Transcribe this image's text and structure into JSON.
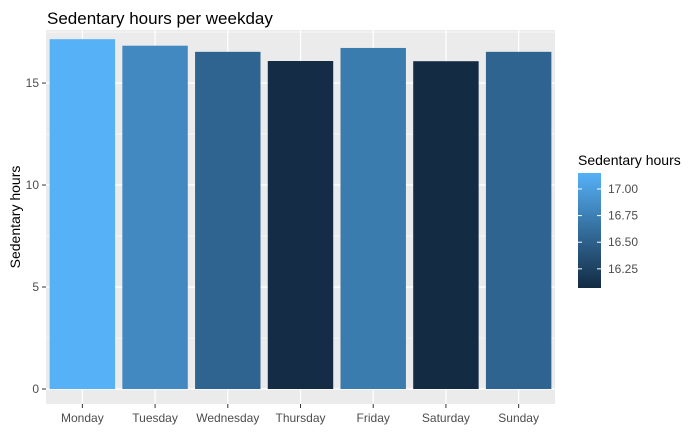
{
  "chart_data": {
    "type": "bar",
    "title": "Sedentary hours per weekday",
    "xlabel": "",
    "ylabel": "Sedentary hours",
    "categories": [
      "Monday",
      "Tuesday",
      "Wednesday",
      "Thursday",
      "Friday",
      "Saturday",
      "Sunday"
    ],
    "values": [
      17.15,
      16.83,
      16.53,
      16.08,
      16.72,
      16.07,
      16.53
    ],
    "ylim": [
      0,
      17.6
    ],
    "yticks": [
      0,
      5,
      10,
      15
    ],
    "grid": true,
    "legend": {
      "title": "Sedentary hours",
      "placement": "right",
      "ticks": [
        17.0,
        16.75,
        16.5,
        16.25
      ],
      "tick_labels": [
        "17.00",
        "16.75",
        "16.50",
        "16.25"
      ],
      "range": [
        16.07,
        17.15
      ],
      "low_color": "#132B43",
      "high_color": "#56B1F7"
    },
    "panel_background": "#EBEBEB",
    "grid_color": "#FFFFFF"
  }
}
